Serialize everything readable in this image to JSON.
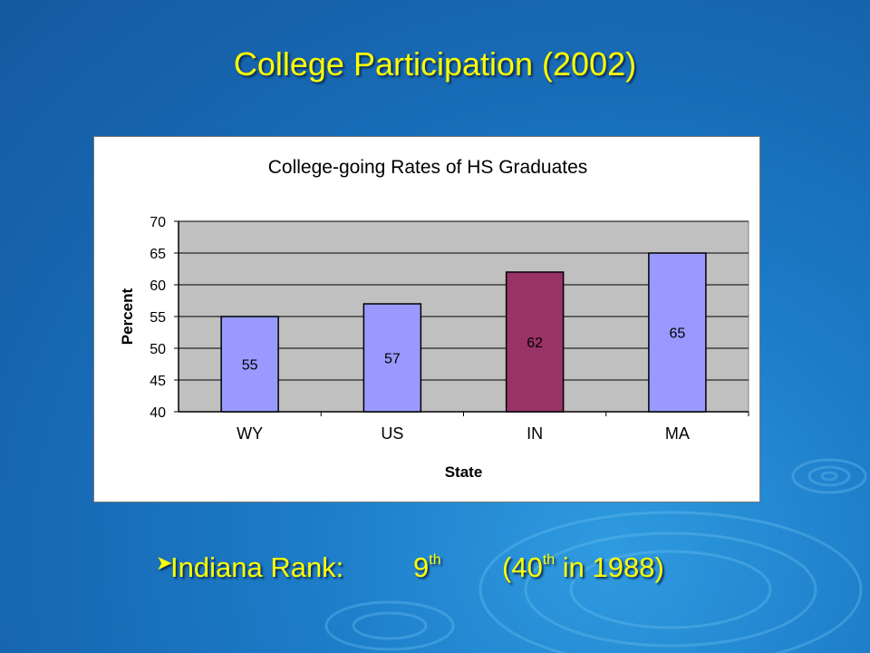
{
  "slide": {
    "title": "College Participation (2002)",
    "bullet": {
      "label": "Indiana Rank:",
      "rank_num": "9",
      "rank_sup": "th",
      "note_open": "(40",
      "note_sup": "th",
      "note_rest": " in 1988)"
    }
  },
  "colors": {
    "title": "#ffff00",
    "bar_default": "#9999ff",
    "bar_highlight": "#993366",
    "plot_bg": "#c0c0c0"
  },
  "chart_data": {
    "type": "bar",
    "title": "College-going Rates of HS Graduates",
    "xlabel": "State",
    "ylabel": "Percent",
    "categories": [
      "WY",
      "US",
      "IN",
      "MA"
    ],
    "values": [
      55,
      57,
      62,
      65
    ],
    "data_labels": [
      "55",
      "57",
      "62",
      "65"
    ],
    "highlight": "IN",
    "ylim": [
      40,
      70
    ],
    "yticks": [
      40,
      45,
      50,
      55,
      60,
      65,
      70
    ],
    "grid": true,
    "legend": "none"
  }
}
